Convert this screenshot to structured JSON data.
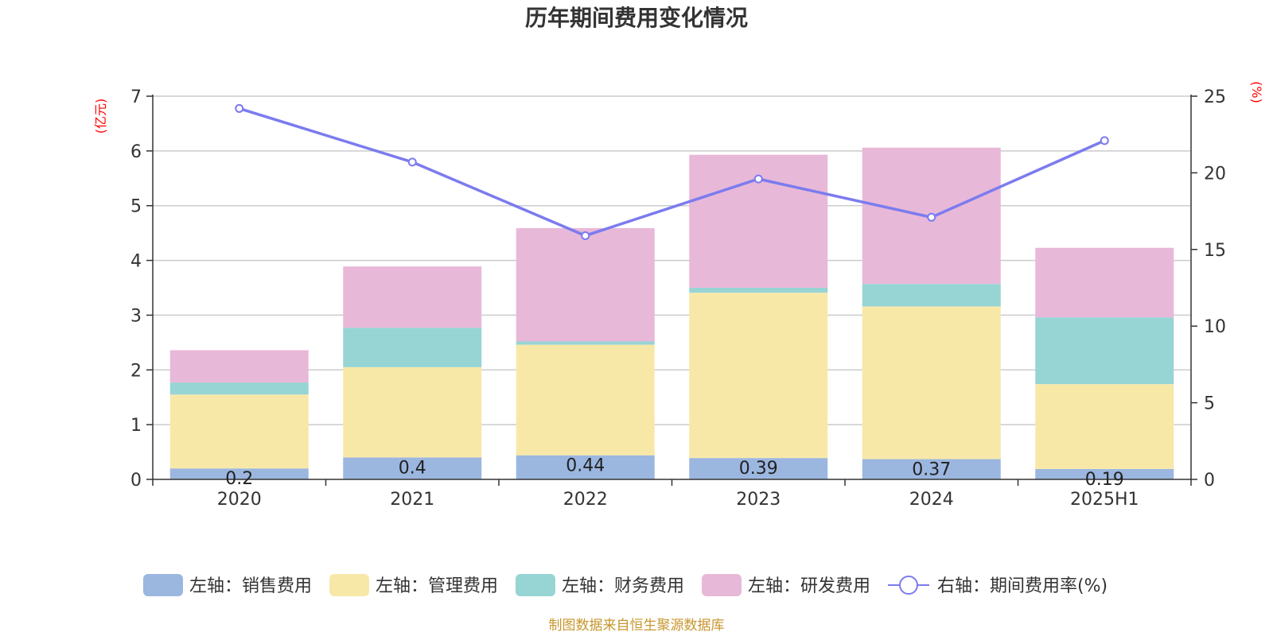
{
  "chart_data": {
    "type": "bar",
    "title": "历年期间费用变化情况",
    "left_unit": "(亿元)",
    "right_unit": "(%)",
    "categories": [
      "2020",
      "2021",
      "2022",
      "2023",
      "2024",
      "2025H1"
    ],
    "left_axis": {
      "min": 0,
      "max": 7,
      "ticks": [
        "0",
        "1",
        "2",
        "3",
        "4",
        "5",
        "6",
        "7"
      ]
    },
    "right_axis": {
      "min": 0,
      "max": 25,
      "ticks": [
        "0",
        "5",
        "10",
        "15",
        "20",
        "25"
      ]
    },
    "grid": true,
    "legend_position": "bottom",
    "series": [
      {
        "name": "左轴：销售费用",
        "type": "bar",
        "stack": true,
        "axis": "left",
        "color": "#9bb7e0",
        "values": [
          0.2,
          0.4,
          0.44,
          0.39,
          0.37,
          0.19
        ],
        "labels": [
          "0.2",
          "0.4",
          "0.44",
          "0.39",
          "0.37",
          "0.19"
        ]
      },
      {
        "name": "左轴：管理费用",
        "type": "bar",
        "stack": true,
        "axis": "left",
        "color": "#f8e8a8",
        "values": [
          1.35,
          1.65,
          2.02,
          3.02,
          2.79,
          1.55
        ]
      },
      {
        "name": "左轴：财务费用",
        "type": "bar",
        "stack": true,
        "axis": "left",
        "color": "#97d4d4",
        "values": [
          0.22,
          0.72,
          0.06,
          0.09,
          0.41,
          1.22
        ]
      },
      {
        "name": "左轴：研发费用",
        "type": "bar",
        "stack": true,
        "axis": "left",
        "color": "#e8b8d8",
        "values": [
          0.59,
          1.12,
          2.07,
          2.43,
          2.49,
          1.27
        ]
      },
      {
        "name": "右轴：期间费用率(%)",
        "type": "line",
        "axis": "right",
        "color": "#7b7bef",
        "values": [
          24.2,
          20.7,
          15.9,
          19.6,
          17.1,
          22.1
        ]
      }
    ],
    "source": "制图数据来自恒生聚源数据库"
  }
}
